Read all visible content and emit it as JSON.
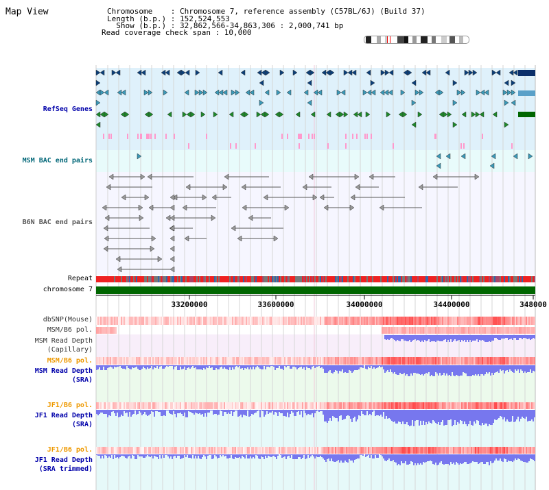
{
  "header": {
    "title": "Map View",
    "chromosome": "Chromosome    : Chromosome 7, reference assembly (C57BL/6J) (Build 37)",
    "length": "Length (b.p.) : 152,524,553",
    "show": "  Show (b.p.) : 32,862,566-34,863,306 : 2,000,741 bp",
    "coverage": "Read coverage check span : 10,000"
  },
  "tracks": {
    "refseq": "RefSeq Genes",
    "msm_bac": "MSM BAC end pairs",
    "b6n_bac": "B6N BAC end pairs",
    "repeat": "Repeat",
    "chrom": "chromosome 7",
    "dbsnp": "dbSNP(Mouse)",
    "msm_b6_pol_1": "MSM/B6 pol.",
    "msm_depth_cap_1": "MSM Read Depth",
    "msm_depth_cap_2": "(Capillary)",
    "msm_b6_pol_2": "MSM/B6 pol.",
    "msm_depth_sra_1": "MSM Read Depth",
    "msm_depth_sra_2": "(SRA)",
    "jf1_b6_pol_1": "JF1/B6 pol.",
    "jf1_depth_sra_1": "JF1 Read Depth",
    "jf1_depth_sra_2": "(SRA)",
    "jf1_b6_pol_2": "JF1/B6 pol.",
    "jf1_depth_trim_1": "JF1 Read Depth",
    "jf1_depth_trim_2": "(SRA trimmed)"
  },
  "axis": {
    "ticks": [
      "33200000",
      "33600000",
      "34000000",
      "34400000",
      "348000"
    ]
  },
  "colors": {
    "refseq_bg": "#dff1fb",
    "msm_bac_bg": "#e8fbfb",
    "b6n_bg": "#f6f6ff",
    "cap_bg": "#f8eefa",
    "sra_bg": "#ecfaec",
    "jf1_bg": "#e6f9f9",
    "label_blue": "#0000aa",
    "label_teal": "#006677",
    "label_orange": "#ee9900",
    "depth": "#7777ee",
    "chrom_green": "#006600"
  }
}
